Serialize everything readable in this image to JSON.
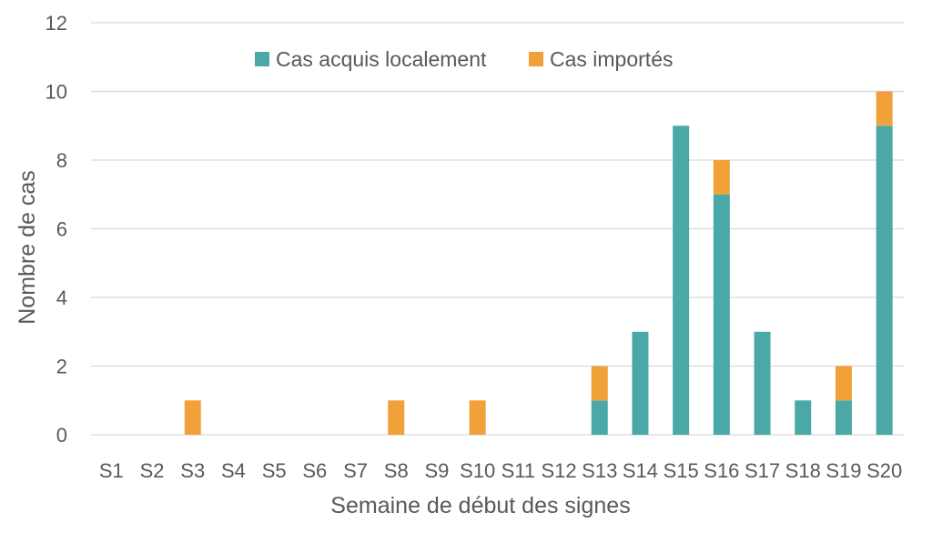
{
  "chart_data": {
    "type": "bar",
    "stacked": true,
    "categories": [
      "S1",
      "S2",
      "S3",
      "S4",
      "S5",
      "S6",
      "S7",
      "S8",
      "S9",
      "S10",
      "S11",
      "S12",
      "S13",
      "S14",
      "S15",
      "S16",
      "S17",
      "S18",
      "S19",
      "S20"
    ],
    "series": [
      {
        "name": "Cas acquis localement",
        "color": "#4aa9a7",
        "values": [
          0,
          0,
          0,
          0,
          0,
          0,
          0,
          0,
          0,
          0,
          0,
          0,
          1,
          3,
          9,
          7,
          3,
          1,
          1,
          9
        ]
      },
      {
        "name": "Cas importés",
        "color": "#f0a13a",
        "values": [
          0,
          0,
          1,
          0,
          0,
          0,
          0,
          1,
          0,
          1,
          0,
          0,
          1,
          0,
          0,
          1,
          0,
          0,
          1,
          1
        ]
      }
    ],
    "title": "",
    "xlabel": "Semaine de début des signes",
    "ylabel": "Nombre de cas",
    "ylim": [
      0,
      12
    ],
    "yticks": [
      0,
      2,
      4,
      6,
      8,
      10,
      12
    ],
    "grid": true,
    "legend_position": "top-center"
  }
}
